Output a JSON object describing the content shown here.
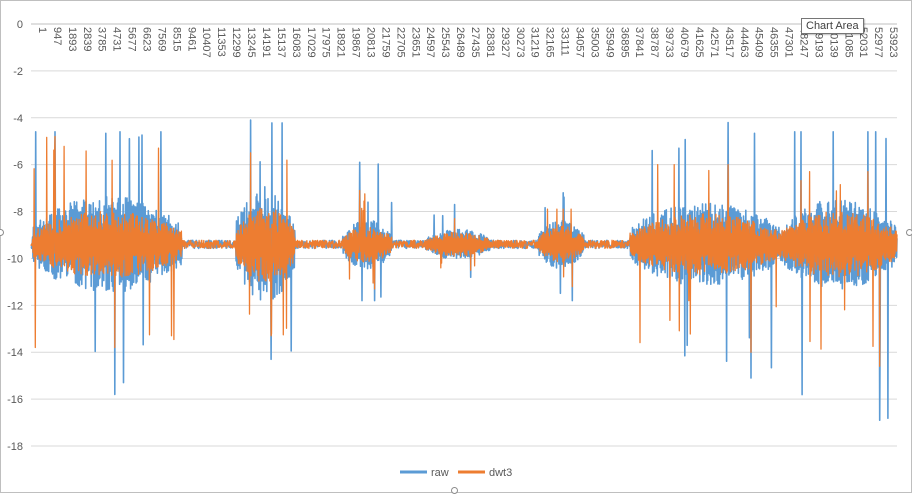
{
  "tooltip": {
    "text": "Chart Area"
  },
  "chart_data": {
    "type": "line",
    "title": "",
    "xlabel": "",
    "ylabel": "",
    "ylim": [
      -18,
      0
    ],
    "y_ticks": [
      0,
      -2,
      -4,
      -6,
      -8,
      -10,
      -12,
      -14,
      -16,
      -18
    ],
    "x_range": [
      1,
      54500
    ],
    "x_categories": [
      "1",
      "947",
      "1893",
      "2839",
      "3785",
      "4731",
      "5677",
      "6623",
      "7569",
      "8515",
      "9461",
      "10407",
      "11353",
      "12299",
      "13245",
      "14191",
      "15137",
      "16083",
      "17029",
      "17975",
      "18921",
      "19867",
      "20813",
      "21759",
      "22705",
      "23651",
      "24597",
      "25543",
      "26489",
      "27435",
      "28381",
      "29327",
      "30273",
      "31219",
      "32165",
      "33111",
      "34057",
      "35003",
      "35949",
      "36895",
      "37841",
      "38787",
      "39733",
      "40679",
      "41625",
      "42571",
      "43517",
      "44463",
      "45409",
      "46355",
      "47301",
      "48247",
      "49193",
      "50139",
      "51085",
      "52031",
      "52977",
      "53923"
    ],
    "x_axis_position": "top",
    "grid": "horizontal",
    "legend": {
      "position": "bottom"
    },
    "series": [
      {
        "name": "raw",
        "color": "#5B9BD5",
        "baseline": -9.4,
        "segments": [
          {
            "x": [
              100,
              9500
            ],
            "max": -4.6,
            "min": -15.8,
            "typ_amp": 1.6
          },
          {
            "x": [
              12900,
              16600
            ],
            "max": -4.1,
            "min": -14.3,
            "typ_amp": 1.9
          },
          {
            "x": [
              19600,
              22700
            ],
            "max": -5.9,
            "min": -11.8,
            "typ_amp": 0.8
          },
          {
            "x": [
              24800,
              28900
            ],
            "max": -7.7,
            "min": -10.8,
            "typ_amp": 0.5
          },
          {
            "x": [
              31900,
              34800
            ],
            "max": -7.2,
            "min": -11.8,
            "typ_amp": 0.8
          },
          {
            "x": [
              37700,
              47200
            ],
            "max": -4.2,
            "min": -15.1,
            "typ_amp": 1.4
          },
          {
            "x": [
              47200,
              54500
            ],
            "max": -4.6,
            "min": -16.9,
            "typ_amp": 1.5
          }
        ]
      },
      {
        "name": "dwt3",
        "color": "#ED7D31",
        "baseline": -9.4,
        "segments": [
          {
            "x": [
              100,
              9500
            ],
            "max": -4.8,
            "min": -13.8,
            "typ_amp": 1.1
          },
          {
            "x": [
              12900,
              16600
            ],
            "max": -5.5,
            "min": -13.3,
            "typ_amp": 1.3
          },
          {
            "x": [
              19600,
              22700
            ],
            "max": -7.1,
            "min": -11.3,
            "typ_amp": 0.6
          },
          {
            "x": [
              24800,
              28900
            ],
            "max": -8.3,
            "min": -10.5,
            "typ_amp": 0.4
          },
          {
            "x": [
              31900,
              34800
            ],
            "max": -7.9,
            "min": -11.2,
            "typ_amp": 0.6
          },
          {
            "x": [
              37700,
              47200
            ],
            "max": -6.0,
            "min": -14.0,
            "typ_amp": 1.0
          },
          {
            "x": [
              47200,
              54500
            ],
            "max": -6.3,
            "min": -14.6,
            "typ_amp": 1.1
          }
        ]
      }
    ]
  }
}
